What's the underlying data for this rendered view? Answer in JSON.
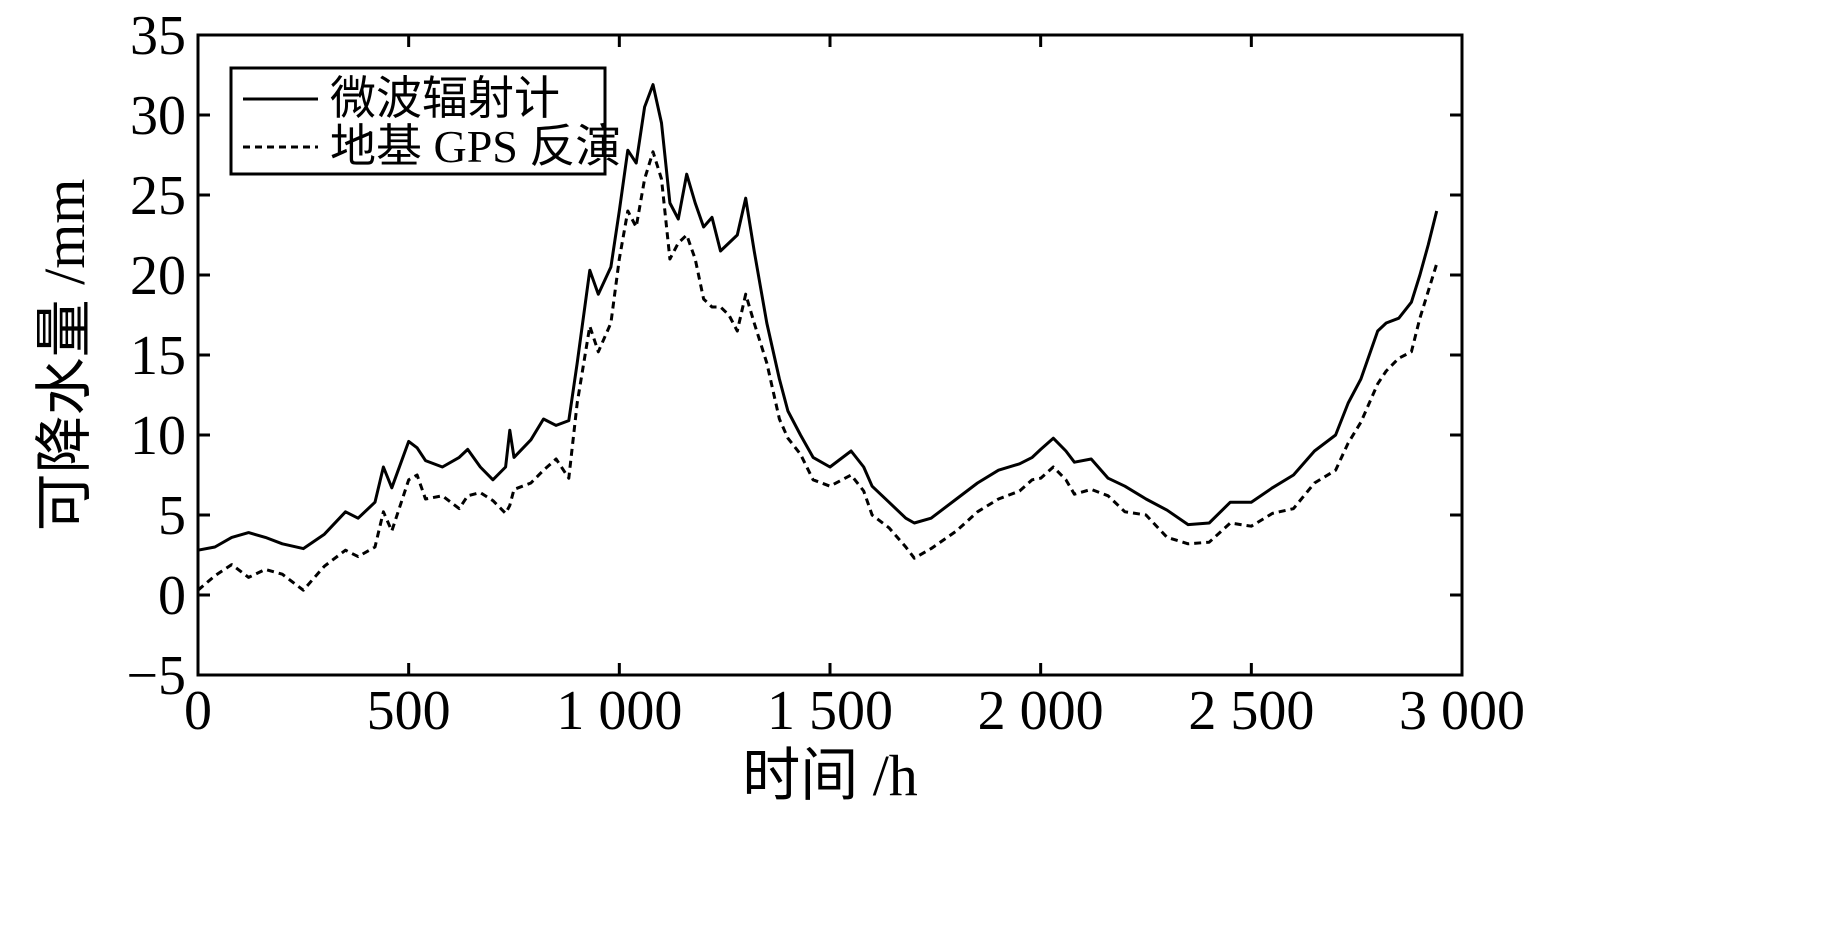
{
  "chart_data": {
    "type": "line",
    "title": "",
    "xlabel": "时间 /h",
    "ylabel": "可降水量 /mm",
    "xlim": [
      0,
      3000
    ],
    "ylim": [
      -5,
      35
    ],
    "x_ticks": [
      0,
      500,
      1000,
      1500,
      2000,
      2500,
      3000
    ],
    "x_tick_labels": [
      "0",
      "500",
      "1 000",
      "1 500",
      "2 000",
      "2 500",
      "3 000"
    ],
    "y_ticks": [
      -5,
      0,
      5,
      10,
      15,
      20,
      25,
      30,
      35
    ],
    "y_tick_labels": [
      "−5",
      "0",
      "5",
      "10",
      "15",
      "20",
      "25",
      "30",
      "35"
    ],
    "grid": false,
    "legend_position": "top-left",
    "series": [
      {
        "name": "微波辐射计",
        "style": "solid",
        "color": "#000000",
        "points": [
          [
            0,
            2.8
          ],
          [
            40,
            3.0
          ],
          [
            80,
            3.6
          ],
          [
            120,
            3.9
          ],
          [
            160,
            3.6
          ],
          [
            200,
            3.2
          ],
          [
            250,
            2.9
          ],
          [
            300,
            3.8
          ],
          [
            350,
            5.2
          ],
          [
            380,
            4.8
          ],
          [
            420,
            5.8
          ],
          [
            440,
            8.0
          ],
          [
            460,
            6.7
          ],
          [
            500,
            9.6
          ],
          [
            520,
            9.2
          ],
          [
            540,
            8.4
          ],
          [
            580,
            8.0
          ],
          [
            620,
            8.6
          ],
          [
            640,
            9.1
          ],
          [
            670,
            8.0
          ],
          [
            700,
            7.2
          ],
          [
            730,
            8.0
          ],
          [
            740,
            10.3
          ],
          [
            750,
            8.6
          ],
          [
            790,
            9.7
          ],
          [
            820,
            11.0
          ],
          [
            850,
            10.6
          ],
          [
            880,
            10.9
          ],
          [
            900,
            14.5
          ],
          [
            930,
            20.3
          ],
          [
            950,
            18.8
          ],
          [
            980,
            20.5
          ],
          [
            1000,
            24.0
          ],
          [
            1020,
            27.8
          ],
          [
            1040,
            27.0
          ],
          [
            1060,
            30.5
          ],
          [
            1080,
            31.9
          ],
          [
            1100,
            29.5
          ],
          [
            1120,
            24.5
          ],
          [
            1140,
            23.5
          ],
          [
            1160,
            26.3
          ],
          [
            1180,
            24.5
          ],
          [
            1200,
            23.0
          ],
          [
            1220,
            23.6
          ],
          [
            1240,
            21.5
          ],
          [
            1260,
            22.0
          ],
          [
            1280,
            22.5
          ],
          [
            1300,
            24.8
          ],
          [
            1320,
            21.5
          ],
          [
            1350,
            17.0
          ],
          [
            1380,
            13.5
          ],
          [
            1400,
            11.5
          ],
          [
            1430,
            10.0
          ],
          [
            1460,
            8.6
          ],
          [
            1500,
            8.0
          ],
          [
            1550,
            9.0
          ],
          [
            1580,
            8.0
          ],
          [
            1600,
            6.8
          ],
          [
            1640,
            5.8
          ],
          [
            1680,
            4.8
          ],
          [
            1700,
            4.5
          ],
          [
            1740,
            4.8
          ],
          [
            1800,
            6.0
          ],
          [
            1850,
            7.0
          ],
          [
            1900,
            7.8
          ],
          [
            1950,
            8.2
          ],
          [
            1980,
            8.6
          ],
          [
            2000,
            9.1
          ],
          [
            2030,
            9.8
          ],
          [
            2060,
            9.0
          ],
          [
            2080,
            8.3
          ],
          [
            2120,
            8.5
          ],
          [
            2160,
            7.3
          ],
          [
            2200,
            6.8
          ],
          [
            2250,
            6.0
          ],
          [
            2300,
            5.3
          ],
          [
            2350,
            4.4
          ],
          [
            2400,
            4.5
          ],
          [
            2450,
            5.8
          ],
          [
            2500,
            5.8
          ],
          [
            2550,
            6.7
          ],
          [
            2600,
            7.5
          ],
          [
            2650,
            9.0
          ],
          [
            2700,
            10.0
          ],
          [
            2730,
            12.0
          ],
          [
            2760,
            13.5
          ],
          [
            2800,
            16.5
          ],
          [
            2820,
            17.0
          ],
          [
            2850,
            17.3
          ],
          [
            2880,
            18.3
          ],
          [
            2900,
            20.0
          ],
          [
            2920,
            21.9
          ],
          [
            2940,
            24.0
          ]
        ]
      },
      {
        "name": "地基 GPS 反演",
        "style": "dashed",
        "color": "#000000",
        "points": [
          [
            0,
            0.3
          ],
          [
            40,
            1.2
          ],
          [
            80,
            1.9
          ],
          [
            120,
            1.1
          ],
          [
            160,
            1.6
          ],
          [
            200,
            1.3
          ],
          [
            250,
            0.3
          ],
          [
            300,
            1.8
          ],
          [
            350,
            2.8
          ],
          [
            380,
            2.4
          ],
          [
            420,
            3.0
          ],
          [
            440,
            5.2
          ],
          [
            460,
            4.0
          ],
          [
            500,
            7.2
          ],
          [
            520,
            7.5
          ],
          [
            540,
            6.0
          ],
          [
            580,
            6.2
          ],
          [
            620,
            5.4
          ],
          [
            640,
            6.2
          ],
          [
            670,
            6.4
          ],
          [
            700,
            5.9
          ],
          [
            730,
            5.1
          ],
          [
            740,
            5.6
          ],
          [
            750,
            6.6
          ],
          [
            790,
            7.0
          ],
          [
            820,
            7.8
          ],
          [
            850,
            8.5
          ],
          [
            880,
            7.3
          ],
          [
            900,
            12.0
          ],
          [
            930,
            16.8
          ],
          [
            950,
            15.2
          ],
          [
            980,
            17.0
          ],
          [
            1000,
            21.0
          ],
          [
            1020,
            24.0
          ],
          [
            1040,
            23.0
          ],
          [
            1060,
            26.0
          ],
          [
            1080,
            27.7
          ],
          [
            1100,
            26.0
          ],
          [
            1120,
            21.0
          ],
          [
            1140,
            22.0
          ],
          [
            1160,
            22.5
          ],
          [
            1180,
            21.0
          ],
          [
            1200,
            18.5
          ],
          [
            1220,
            18.0
          ],
          [
            1240,
            18.0
          ],
          [
            1260,
            17.5
          ],
          [
            1280,
            16.5
          ],
          [
            1300,
            18.8
          ],
          [
            1320,
            17.0
          ],
          [
            1350,
            14.5
          ],
          [
            1380,
            11.0
          ],
          [
            1400,
            9.8
          ],
          [
            1430,
            8.8
          ],
          [
            1460,
            7.2
          ],
          [
            1500,
            6.8
          ],
          [
            1550,
            7.5
          ],
          [
            1580,
            6.5
          ],
          [
            1600,
            5.0
          ],
          [
            1640,
            4.2
          ],
          [
            1680,
            3.0
          ],
          [
            1700,
            2.3
          ],
          [
            1740,
            2.9
          ],
          [
            1800,
            4.0
          ],
          [
            1850,
            5.2
          ],
          [
            1900,
            6.0
          ],
          [
            1950,
            6.5
          ],
          [
            1980,
            7.2
          ],
          [
            2000,
            7.3
          ],
          [
            2030,
            8.0
          ],
          [
            2060,
            7.2
          ],
          [
            2080,
            6.3
          ],
          [
            2120,
            6.6
          ],
          [
            2160,
            6.2
          ],
          [
            2200,
            5.2
          ],
          [
            2250,
            5.0
          ],
          [
            2300,
            3.6
          ],
          [
            2350,
            3.2
          ],
          [
            2400,
            3.3
          ],
          [
            2450,
            4.5
          ],
          [
            2500,
            4.3
          ],
          [
            2550,
            5.1
          ],
          [
            2600,
            5.4
          ],
          [
            2650,
            7.0
          ],
          [
            2700,
            7.8
          ],
          [
            2730,
            9.5
          ],
          [
            2760,
            10.8
          ],
          [
            2800,
            13.2
          ],
          [
            2820,
            14.0
          ],
          [
            2850,
            14.8
          ],
          [
            2880,
            15.2
          ],
          [
            2900,
            17.3
          ],
          [
            2920,
            19.0
          ],
          [
            2940,
            20.7
          ]
        ]
      }
    ]
  }
}
